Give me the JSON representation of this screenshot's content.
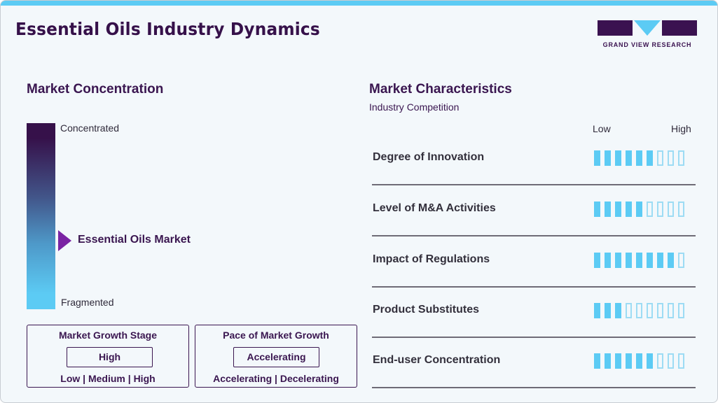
{
  "header": {
    "title": "Essential Oils Industry Dynamics",
    "logo_text": "GRAND VIEW RESEARCH",
    "logo_icon": "gvr-logo-icon"
  },
  "colors": {
    "accent_cyan": "#5ccbf4",
    "brand_purple": "#36114a",
    "marker_purple": "#7a23a3"
  },
  "market_concentration": {
    "title": "Market Concentration",
    "top_label": "Concentrated",
    "bottom_label": "Fragmented",
    "marker_label": "Essential Oils Market",
    "marker_icon": "triangle-pointer-icon"
  },
  "growth_stage": {
    "title": "Market Growth Stage",
    "value": "High",
    "options": "Low | Medium | High"
  },
  "growth_pace": {
    "title": "Pace of Market Growth",
    "value": "Accelerating",
    "options": "Accelerating | Decelerating"
  },
  "market_characteristics": {
    "title": "Market Characteristics",
    "subtitle": "Industry Competition",
    "scale_low": "Low",
    "scale_high": "High",
    "max_rating": 9,
    "rows": [
      {
        "label": "Degree of Innovation",
        "rating": 6
      },
      {
        "label": "Level of M&A Activities",
        "rating": 5
      },
      {
        "label": "Impact of Regulations",
        "rating": 8
      },
      {
        "label": "Product Substitutes",
        "rating": 3
      },
      {
        "label": "End-user Concentration",
        "rating": 6
      }
    ]
  }
}
